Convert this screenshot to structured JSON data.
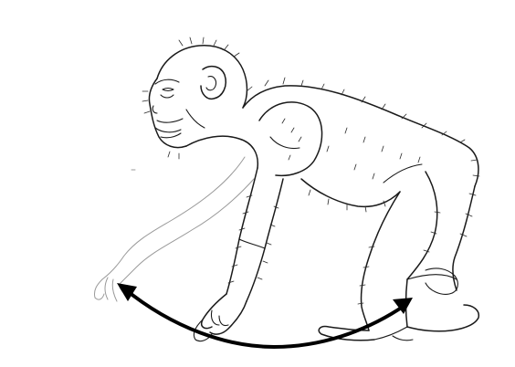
{
  "image": {
    "subject": "chimpanzee",
    "style": "black line drawing on white",
    "colors": {
      "background": "#ffffff",
      "ink": "#1a1a1a",
      "ghost_limb": "#9a9a9a",
      "arrow": "#000000"
    },
    "annotations": {
      "double_headed_arrow": {
        "heads": "both ends"
      }
    }
  }
}
